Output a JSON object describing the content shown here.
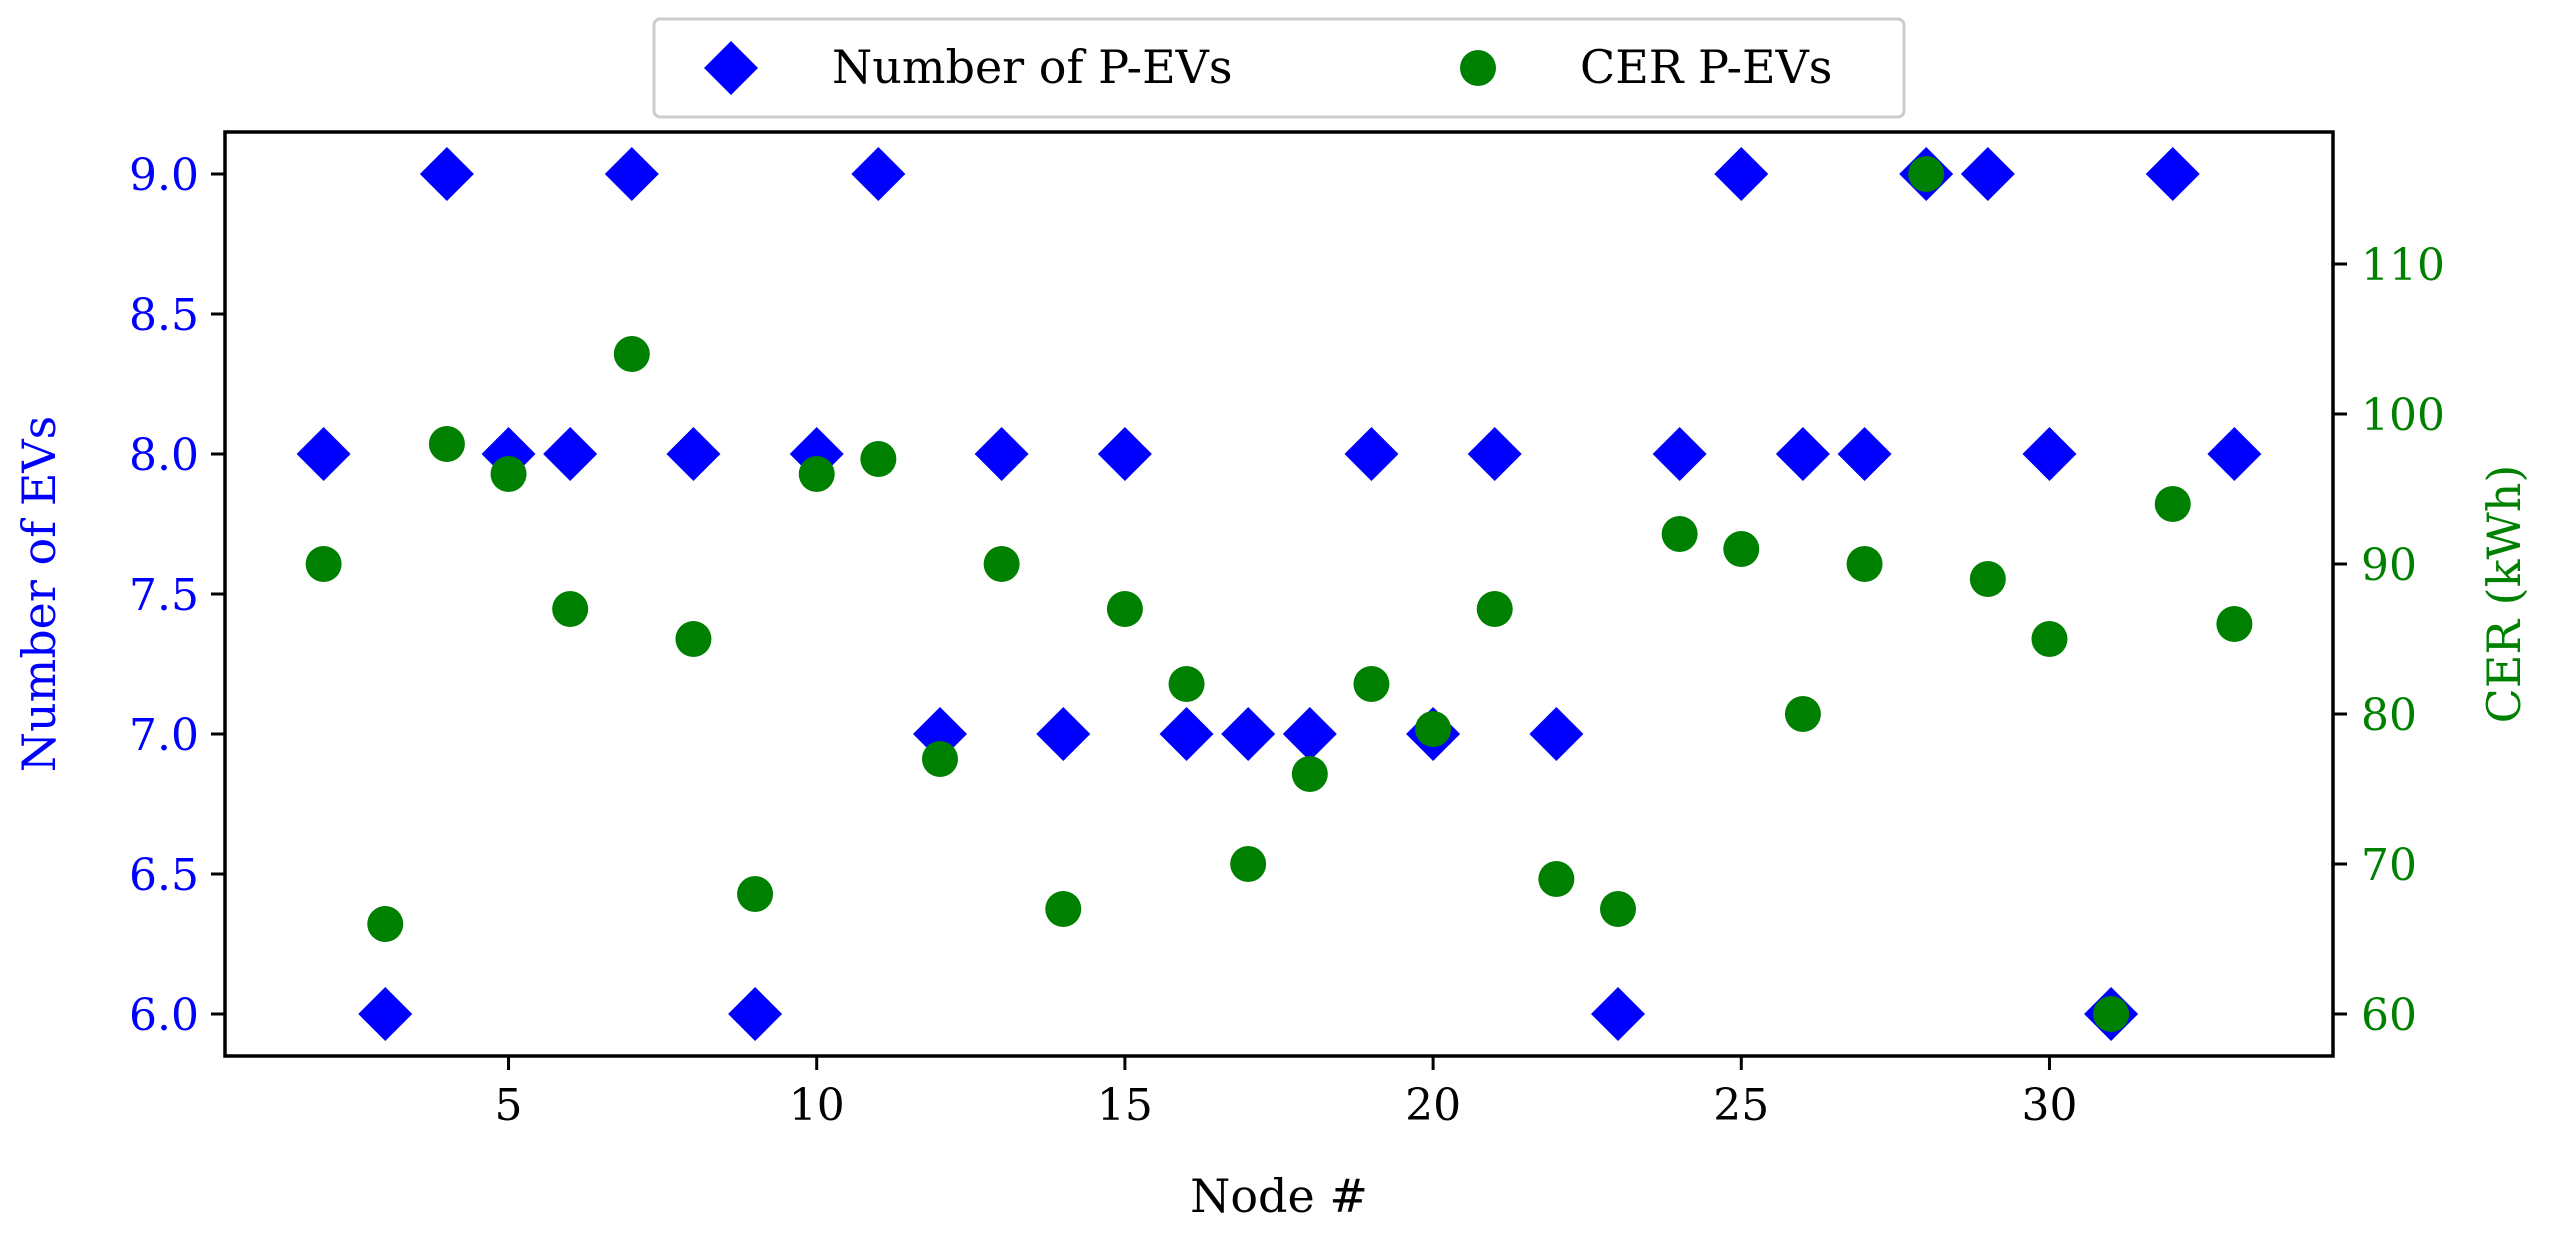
{
  "colors": {
    "left_axis": "#0000ff",
    "right_axis": "#008000",
    "axis": "#000000",
    "legend_border": "#cccccc"
  },
  "legend": {
    "items": [
      {
        "label": "Number of P-EVs",
        "marker": "diamond",
        "color": "#0000ff"
      },
      {
        "label": "CER P-EVs",
        "marker": "circle",
        "color": "#008000"
      }
    ]
  },
  "chart_data": {
    "type": "scatter",
    "title": "",
    "xlabel": "Node #",
    "ylabel": "Number of EVs",
    "y2label": "CER (kWh)",
    "xlim": [
      0.4,
      34.6
    ],
    "ylim": [
      5.85,
      9.15
    ],
    "y2lim": [
      57.2,
      118.8
    ],
    "xticks": [
      5,
      10,
      15,
      20,
      25,
      30
    ],
    "yticks": [
      6.0,
      6.5,
      7.0,
      7.5,
      8.0,
      8.5,
      9.0
    ],
    "y2ticks": [
      60,
      70,
      80,
      90,
      100,
      110
    ],
    "x_tick_labels": [
      "5",
      "10",
      "15",
      "20",
      "25",
      "30"
    ],
    "y_tick_labels": [
      "6.0",
      "6.5",
      "7.0",
      "7.5",
      "8.0",
      "8.5",
      "9.0"
    ],
    "y2_tick_labels": [
      "60",
      "70",
      "80",
      "90",
      "100",
      "110"
    ],
    "x": [
      2,
      3,
      4,
      5,
      6,
      7,
      8,
      9,
      10,
      11,
      12,
      13,
      14,
      15,
      16,
      17,
      18,
      19,
      20,
      21,
      22,
      23,
      24,
      25,
      26,
      27,
      28,
      29,
      30,
      31,
      32,
      33
    ],
    "series": [
      {
        "name": "Number of P-EVs",
        "axis": "left",
        "marker": "diamond",
        "color": "#0000ff",
        "values": [
          8,
          6,
          9,
          8,
          8,
          9,
          8,
          6,
          8,
          9,
          7,
          8,
          7,
          8,
          7,
          7,
          7,
          8,
          7,
          8,
          7,
          6,
          8,
          9,
          8,
          8,
          9,
          9,
          8,
          6,
          9,
          8
        ]
      },
      {
        "name": "CER P-EVs",
        "axis": "right",
        "marker": "circle",
        "color": "#008000",
        "values": [
          90,
          66,
          98,
          96,
          87,
          104,
          85,
          68,
          96,
          97,
          77,
          90,
          67,
          87,
          82,
          70,
          76,
          82,
          79,
          87,
          69,
          67,
          92,
          91,
          80,
          90,
          116,
          89,
          85,
          60,
          94,
          86
        ]
      }
    ]
  }
}
